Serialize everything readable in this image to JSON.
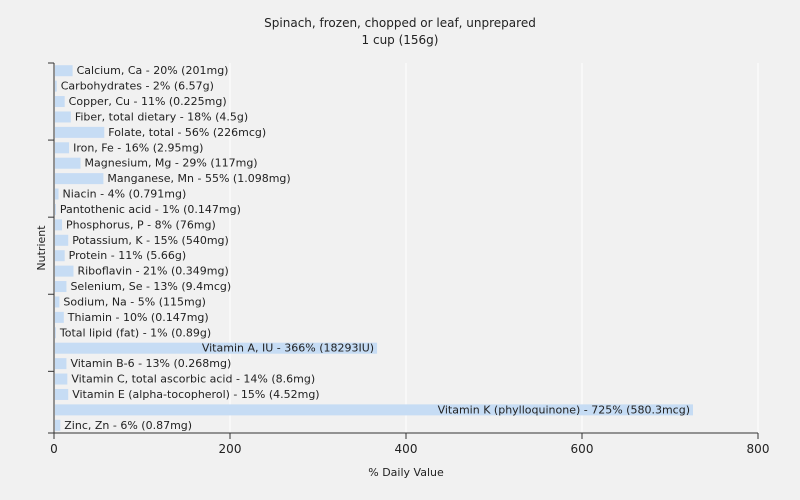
{
  "chart_data": {
    "type": "bar",
    "orientation": "horizontal",
    "title": "Spinach, frozen, chopped or leaf, unprepared",
    "subtitle": "1 cup (156g)",
    "xlabel": "% Daily Value",
    "ylabel": "Nutrient",
    "xlim": [
      0,
      800
    ],
    "xticks": [
      0,
      200,
      400,
      600,
      800
    ],
    "grid": true,
    "bar_color": "#c6dcf4",
    "categories": [
      "Calcium, Ca",
      "Carbohydrates",
      "Copper, Cu",
      "Fiber, total dietary",
      "Folate, total",
      "Iron, Fe",
      "Magnesium, Mg",
      "Manganese, Mn",
      "Niacin",
      "Pantothenic acid",
      "Phosphorus, P",
      "Potassium, K",
      "Protein",
      "Riboflavin",
      "Selenium, Se",
      "Sodium, Na",
      "Thiamin",
      "Total lipid (fat)",
      "Vitamin A, IU",
      "Vitamin B-6",
      "Vitamin C, total ascorbic acid",
      "Vitamin E (alpha-tocopherol)",
      "Vitamin K (phylloquinone)",
      "Zinc, Zn"
    ],
    "values": [
      20,
      2,
      11,
      18,
      56,
      16,
      29,
      55,
      4,
      1,
      8,
      15,
      11,
      21,
      13,
      5,
      10,
      1,
      366,
      13,
      14,
      15,
      725,
      6
    ],
    "labels": [
      "Calcium, Ca - 20% (201mg)",
      "Carbohydrates - 2% (6.57g)",
      "Copper, Cu - 11% (0.225mg)",
      "Fiber, total dietary - 18% (4.5g)",
      "Folate, total - 56% (226mcg)",
      "Iron, Fe - 16% (2.95mg)",
      "Magnesium, Mg - 29% (117mg)",
      "Manganese, Mn - 55% (1.098mg)",
      "Niacin - 4% (0.791mg)",
      "Pantothenic acid - 1% (0.147mg)",
      "Phosphorus, P - 8% (76mg)",
      "Potassium, K - 15% (540mg)",
      "Protein - 11% (5.66g)",
      "Riboflavin - 21% (0.349mg)",
      "Selenium, Se - 13% (9.4mcg)",
      "Sodium, Na - 5% (115mg)",
      "Thiamin - 10% (0.147mg)",
      "Total lipid (fat) - 1% (0.89g)",
      "Vitamin A, IU - 366% (18293IU)",
      "Vitamin B-6 - 13% (0.268mg)",
      "Vitamin C, total ascorbic acid - 14% (8.6mg)",
      "Vitamin E (alpha-tocopherol) - 15% (4.52mg)",
      "Vitamin K (phylloquinone) - 725% (580.3mcg)",
      "Zinc, Zn - 6% (0.87mg)"
    ]
  }
}
